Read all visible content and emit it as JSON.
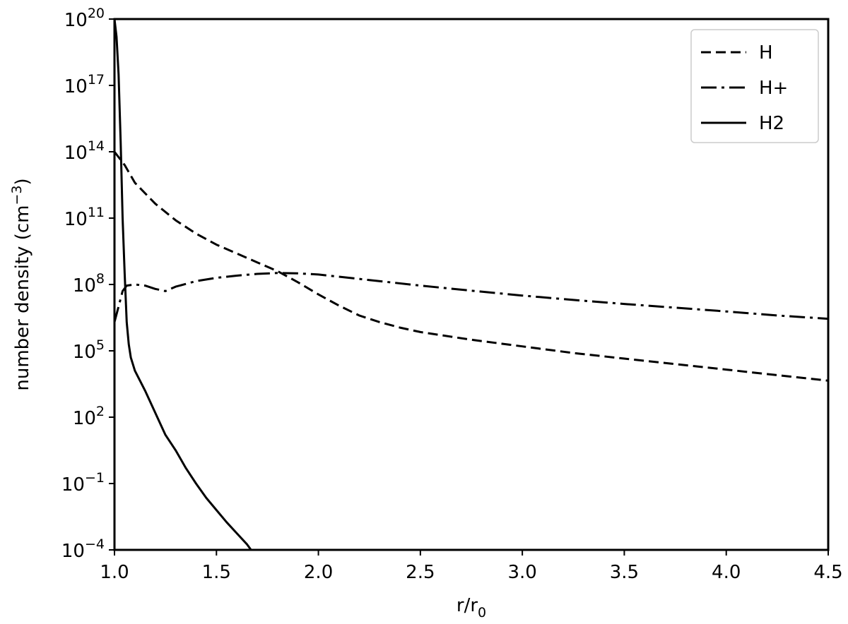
{
  "chart_data": {
    "type": "line",
    "xlabel": {
      "base": "r/r",
      "sub": "0"
    },
    "ylabel": {
      "main": "number density (cm",
      "sup": "−3",
      "close": ")"
    },
    "xlim": [
      1.0,
      4.5
    ],
    "ylim_log10": [
      -4,
      20
    ],
    "y_scale": "log",
    "grid": false,
    "legend_position": "top-right",
    "x_ticks": [
      {
        "value": 1.0,
        "label": "1.0"
      },
      {
        "value": 1.5,
        "label": "1.5"
      },
      {
        "value": 2.0,
        "label": "2.0"
      },
      {
        "value": 2.5,
        "label": "2.5"
      },
      {
        "value": 3.0,
        "label": "3.0"
      },
      {
        "value": 3.5,
        "label": "3.5"
      },
      {
        "value": 4.0,
        "label": "4.0"
      },
      {
        "value": 4.5,
        "label": "4.5"
      }
    ],
    "y_ticks": [
      {
        "exp": 20,
        "base": "10",
        "sup": "20"
      },
      {
        "exp": 17,
        "base": "10",
        "sup": "17"
      },
      {
        "exp": 14,
        "base": "10",
        "sup": "14"
      },
      {
        "exp": 11,
        "base": "10",
        "sup": "11"
      },
      {
        "exp": 8,
        "base": "10",
        "sup": "8"
      },
      {
        "exp": 5,
        "base": "10",
        "sup": "5"
      },
      {
        "exp": 2,
        "base": "10",
        "sup": "2"
      },
      {
        "exp": -1,
        "base": "10",
        "sup": "−1"
      },
      {
        "exp": -4,
        "base": "10",
        "sup": "−4"
      }
    ],
    "series": [
      {
        "name": "H",
        "style": "dashed",
        "color": "#000000",
        "x": [
          1.0,
          1.05,
          1.1,
          1.2,
          1.3,
          1.4,
          1.5,
          1.6,
          1.7,
          1.8,
          1.9,
          2.0,
          2.1,
          2.2,
          2.3,
          2.4,
          2.5,
          2.75,
          3.0,
          3.25,
          3.5,
          3.75,
          4.0,
          4.25,
          4.5
        ],
        "log10_y": [
          14.0,
          13.4,
          12.6,
          11.65,
          10.9,
          10.3,
          9.8,
          9.4,
          9.0,
          8.6,
          8.1,
          7.55,
          7.05,
          6.6,
          6.3,
          6.05,
          5.85,
          5.5,
          5.2,
          4.9,
          4.65,
          4.4,
          4.15,
          3.9,
          3.65
        ]
      },
      {
        "name": "H+",
        "style": "dashdot",
        "color": "#000000",
        "x": [
          1.0,
          1.02,
          1.04,
          1.06,
          1.1,
          1.15,
          1.2,
          1.25,
          1.3,
          1.4,
          1.5,
          1.6,
          1.7,
          1.8,
          1.9,
          2.0,
          2.25,
          2.5,
          2.75,
          3.0,
          3.25,
          3.5,
          3.75,
          4.0,
          4.25,
          4.5
        ],
        "log10_y": [
          6.3,
          7.0,
          7.7,
          7.95,
          8.0,
          7.95,
          7.8,
          7.7,
          7.9,
          8.15,
          8.3,
          8.4,
          8.48,
          8.52,
          8.5,
          8.45,
          8.2,
          7.95,
          7.72,
          7.5,
          7.3,
          7.12,
          6.95,
          6.78,
          6.6,
          6.45
        ]
      },
      {
        "name": "H2",
        "style": "solid",
        "color": "#000000",
        "x": [
          1.0,
          1.01,
          1.02,
          1.03,
          1.04,
          1.05,
          1.06,
          1.07,
          1.08,
          1.1,
          1.15,
          1.2,
          1.25,
          1.3,
          1.35,
          1.4,
          1.45,
          1.5,
          1.55,
          1.6,
          1.65,
          1.67
        ],
        "log10_y": [
          20.0,
          19.2,
          17.5,
          14.5,
          11.0,
          8.5,
          6.3,
          5.3,
          4.7,
          4.1,
          3.2,
          2.2,
          1.2,
          0.5,
          -0.3,
          -1.0,
          -1.65,
          -2.2,
          -2.75,
          -3.25,
          -3.75,
          -4.0
        ]
      }
    ]
  }
}
